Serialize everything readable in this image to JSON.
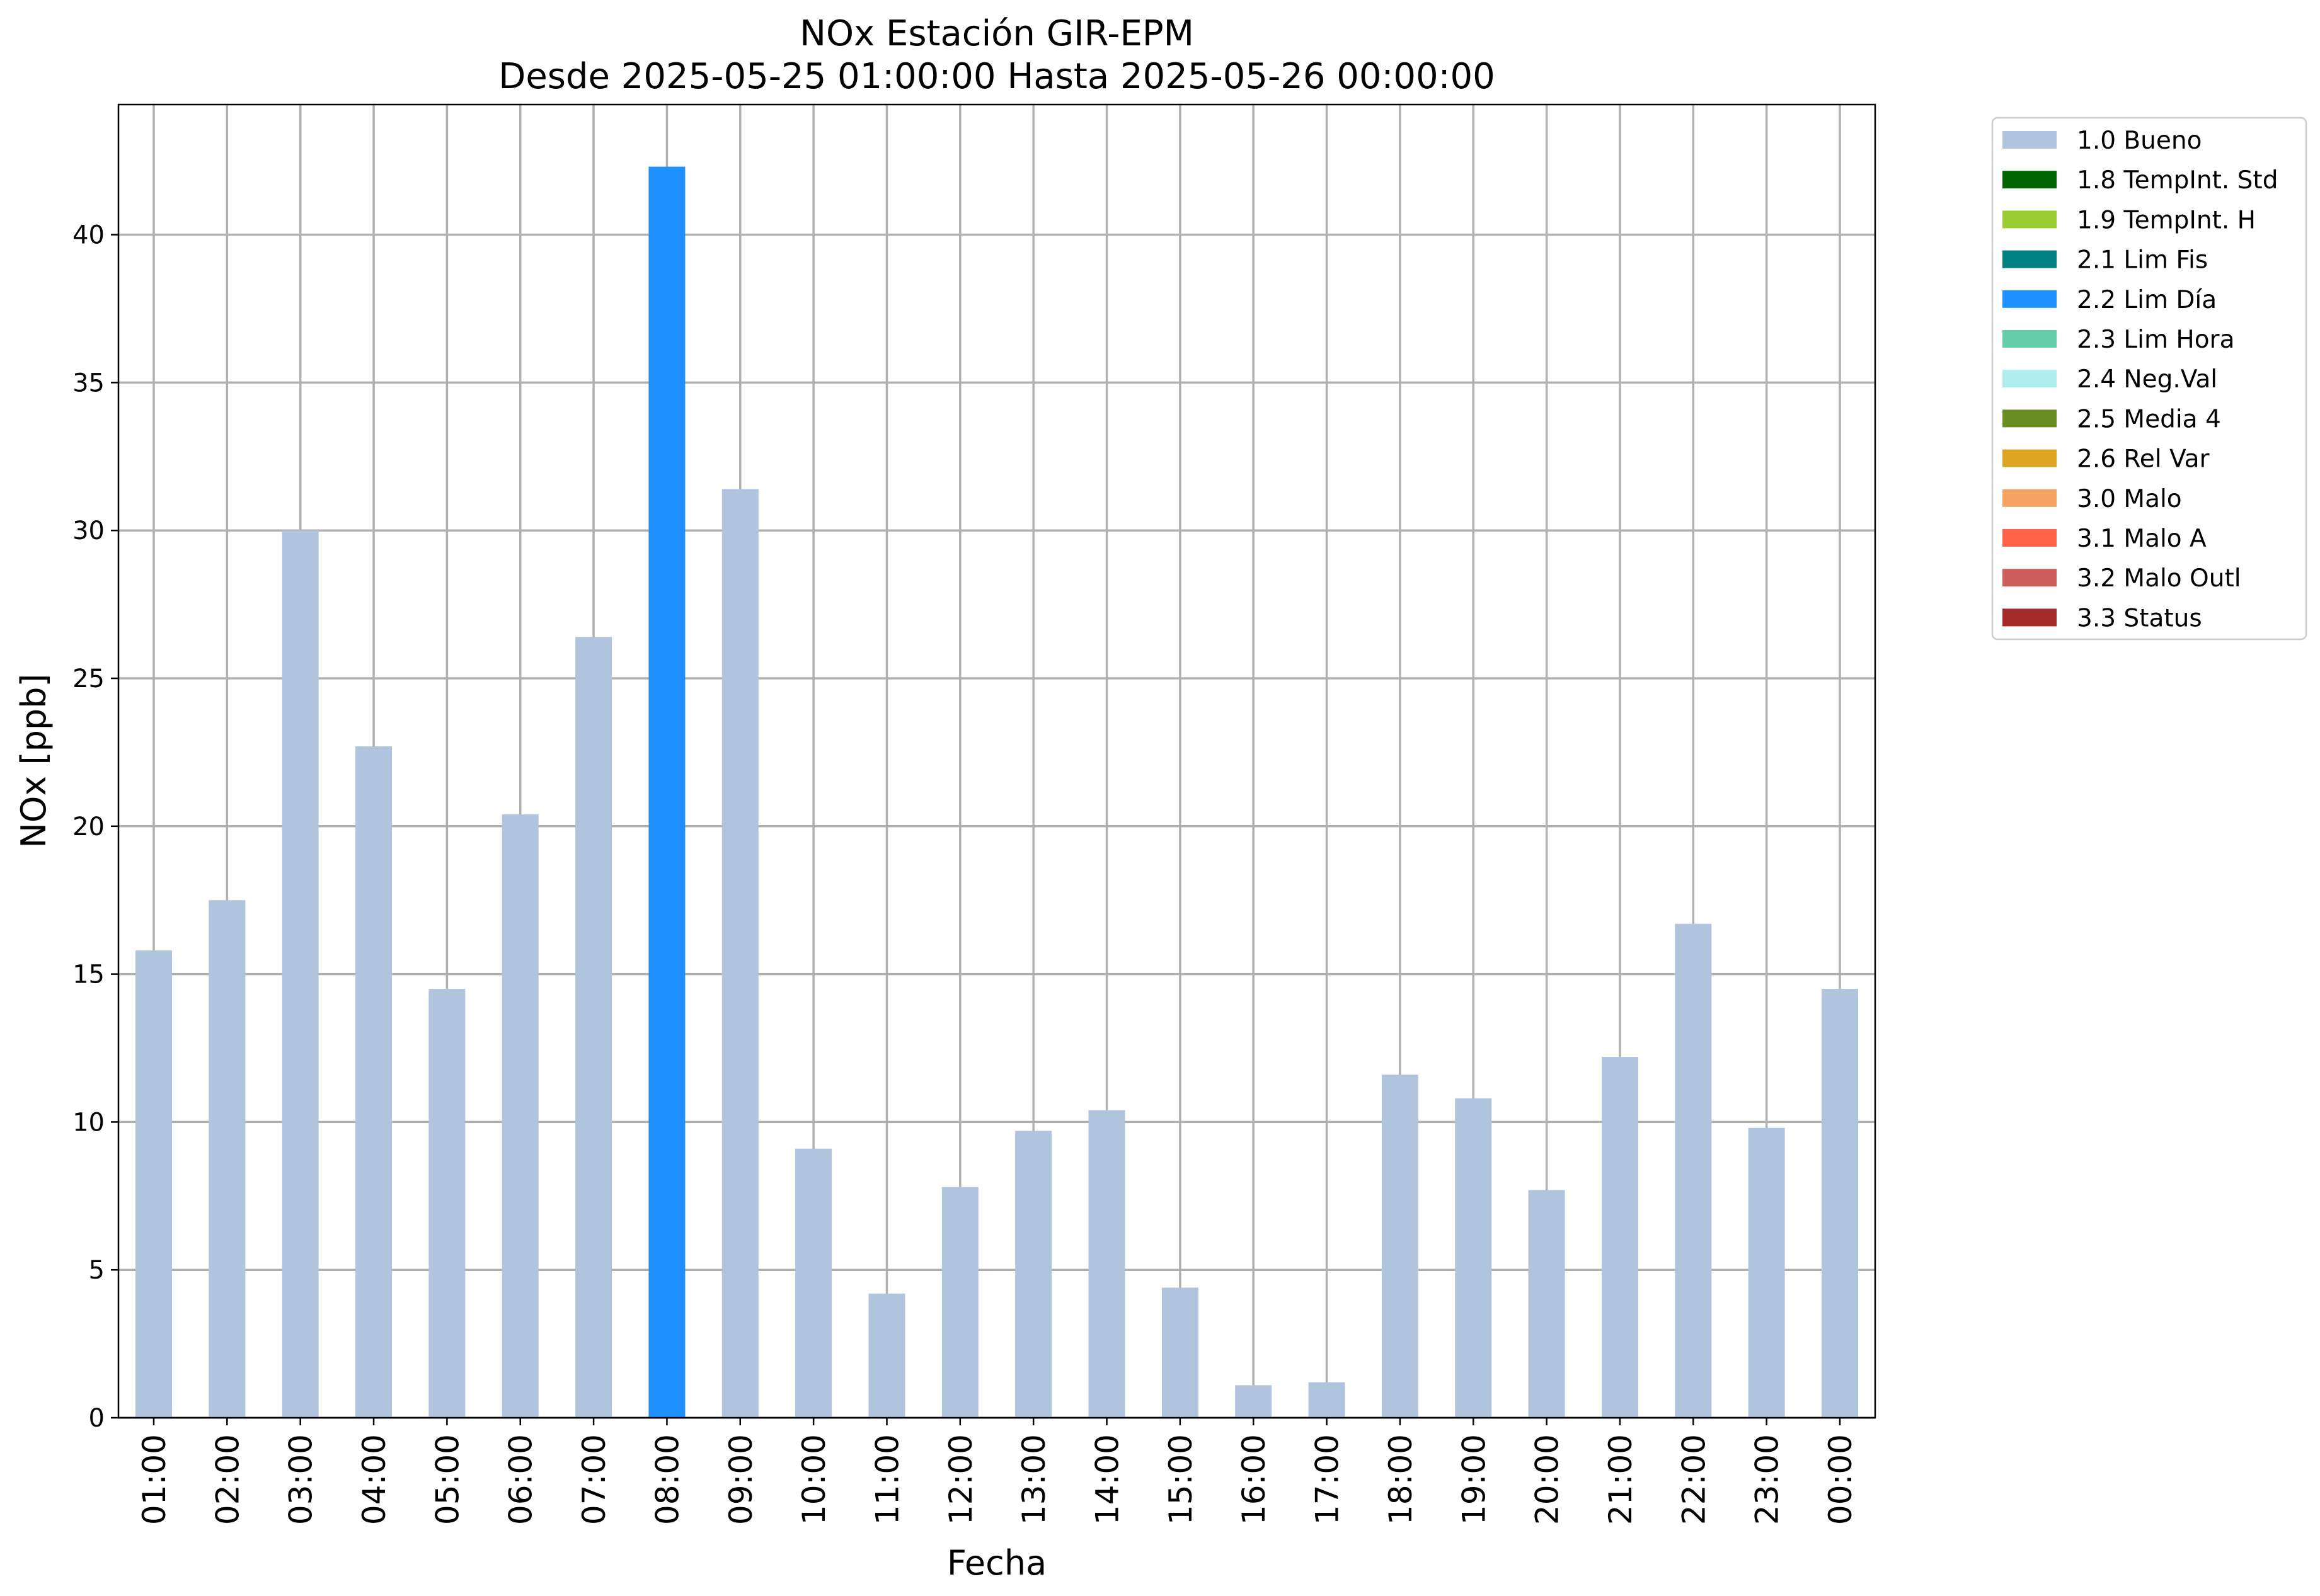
{
  "chart_data": {
    "type": "bar",
    "title": "NOx Estación GIR-EPM",
    "subtitle": "Desde 2025-05-25 01:00:00 Hasta 2025-05-26 00:00:00",
    "xlabel": "Fecha",
    "ylabel": "NOx [ppb]",
    "ylim": [
      0,
      44.4
    ],
    "yticks": [
      0,
      5,
      10,
      15,
      20,
      25,
      30,
      35,
      40
    ],
    "grid": true,
    "legend_position": "outside-top-right",
    "categories": [
      "01:00",
      "02:00",
      "03:00",
      "04:00",
      "05:00",
      "06:00",
      "07:00",
      "08:00",
      "09:00",
      "10:00",
      "11:00",
      "12:00",
      "13:00",
      "14:00",
      "15:00",
      "16:00",
      "17:00",
      "18:00",
      "19:00",
      "20:00",
      "21:00",
      "22:00",
      "23:00",
      "00:00"
    ],
    "values": [
      15.8,
      17.5,
      30.0,
      22.7,
      14.5,
      20.4,
      26.4,
      42.3,
      31.4,
      9.1,
      4.2,
      7.8,
      9.7,
      10.4,
      4.4,
      1.1,
      1.2,
      11.6,
      10.8,
      7.7,
      12.2,
      16.7,
      9.8,
      14.5
    ],
    "value_flags": [
      "1.0 Bueno",
      "1.0 Bueno",
      "1.0 Bueno",
      "1.0 Bueno",
      "1.0 Bueno",
      "1.0 Bueno",
      "1.0 Bueno",
      "2.2 Lim Día",
      "1.0 Bueno",
      "1.0 Bueno",
      "1.0 Bueno",
      "1.0 Bueno",
      "1.0 Bueno",
      "1.0 Bueno",
      "1.0 Bueno",
      "1.0 Bueno",
      "1.0 Bueno",
      "1.0 Bueno",
      "1.0 Bueno",
      "1.0 Bueno",
      "1.0 Bueno",
      "1.0 Bueno",
      "1.0 Bueno",
      "1.0 Bueno"
    ],
    "legend": [
      {
        "label": "1.0 Bueno",
        "color": "#b0c4de"
      },
      {
        "label": "1.8 TempInt. Std",
        "color": "#006400"
      },
      {
        "label": "1.9 TempInt. H",
        "color": "#9acd32"
      },
      {
        "label": "2.1 Lim Fis",
        "color": "#008080"
      },
      {
        "label": "2.2 Lim Día",
        "color": "#1e90ff"
      },
      {
        "label": "2.3 Lim Hora",
        "color": "#66cdaa"
      },
      {
        "label": "2.4 Neg.Val",
        "color": "#afeeee"
      },
      {
        "label": "2.5 Media 4",
        "color": "#6b8e23"
      },
      {
        "label": "2.6 Rel Var",
        "color": "#daa520"
      },
      {
        "label": "3.0 Malo",
        "color": "#f4a460"
      },
      {
        "label": "3.1 Malo A",
        "color": "#ff6347"
      },
      {
        "label": "3.2 Malo Outl",
        "color": "#cd5c5c"
      },
      {
        "label": "3.3 Status",
        "color": "#a52a2a"
      }
    ]
  }
}
